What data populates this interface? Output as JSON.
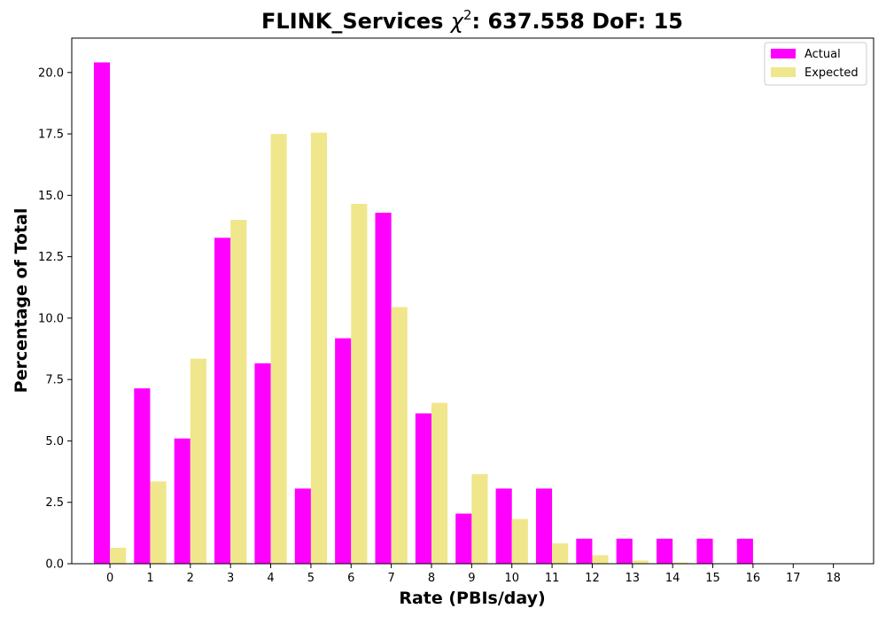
{
  "chart_data": {
    "type": "bar",
    "title_prefix": "FLINK_Services ",
    "title_symbol": "χ",
    "title_superscript": "2",
    "title_suffix": ": 637.558 DoF: 15",
    "xlabel": "Rate (PBIs/day)",
    "ylabel": "Percentage of Total",
    "categories": [
      "0",
      "1",
      "2",
      "3",
      "4",
      "5",
      "6",
      "7",
      "8",
      "9",
      "10",
      "11",
      "12",
      "13",
      "14",
      "15",
      "16",
      "17",
      "18"
    ],
    "series": [
      {
        "name": "Actual",
        "color": "#ff00ff",
        "values": [
          20.41,
          7.14,
          5.1,
          13.27,
          8.16,
          3.06,
          9.18,
          14.29,
          6.12,
          2.04,
          3.06,
          3.06,
          1.02,
          1.02,
          1.02,
          1.02,
          1.02,
          0,
          0
        ]
      },
      {
        "name": "Expected",
        "color": "#f0e68c",
        "values": [
          0.65,
          3.35,
          8.35,
          14.0,
          17.5,
          17.55,
          14.65,
          10.45,
          6.55,
          3.65,
          1.82,
          0.83,
          0.35,
          0.13,
          0.05,
          0.02,
          0.005,
          0,
          0
        ]
      }
    ],
    "y_ticks": [
      "0.0",
      "2.5",
      "5.0",
      "7.5",
      "10.0",
      "12.5",
      "15.0",
      "17.5",
      "20.0"
    ],
    "ylim": [
      0,
      21.4
    ],
    "xlim": [
      -0.95,
      19.0
    ],
    "grid": false,
    "legend_position": "top-right"
  }
}
